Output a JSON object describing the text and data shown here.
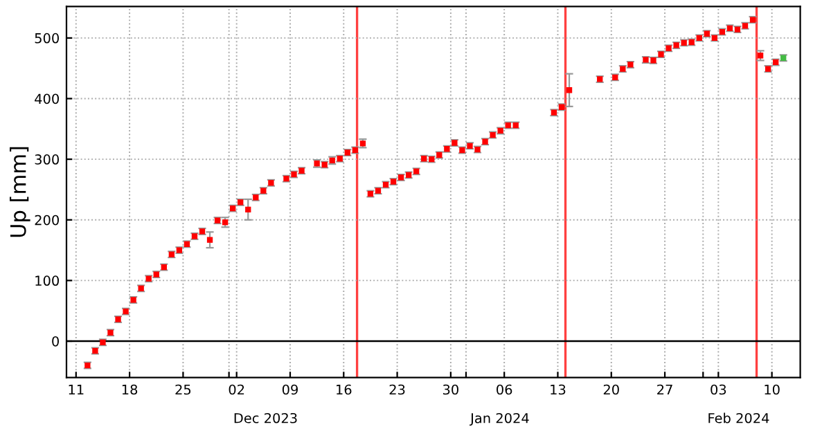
{
  "chart_data": {
    "type": "scatter",
    "ylabel": "Up [mm]",
    "xlim": [
      "2023-11-09T18:00",
      "2024-02-13T17:00"
    ],
    "ylim": [
      -60,
      552
    ],
    "yticks": [
      0,
      100,
      200,
      300,
      400,
      500
    ],
    "xticks": [
      {
        "value": "2023-11-11",
        "label": "11"
      },
      {
        "value": "2023-11-18",
        "label": "18"
      },
      {
        "value": "2023-11-25",
        "label": "25"
      },
      {
        "value": "2023-12-01",
        "label": null
      },
      {
        "value": "2023-12-02",
        "label": "02"
      },
      {
        "value": "2023-12-09",
        "label": "09"
      },
      {
        "value": "2023-12-16",
        "label": "16"
      },
      {
        "value": "2023-12-23",
        "label": "23"
      },
      {
        "value": "2023-12-30",
        "label": "30"
      },
      {
        "value": "2024-01-01",
        "label": null
      },
      {
        "value": "2024-01-06",
        "label": "06"
      },
      {
        "value": "2024-01-13",
        "label": "13"
      },
      {
        "value": "2024-01-20",
        "label": "20"
      },
      {
        "value": "2024-01-27",
        "label": "27"
      },
      {
        "value": "2024-02-01",
        "label": null
      },
      {
        "value": "2024-02-03",
        "label": "03"
      },
      {
        "value": "2024-02-10",
        "label": "10"
      }
    ],
    "annotations": [
      "Dec 2023",
      "Jan 2024",
      "Feb 2024"
    ],
    "grid": true,
    "marker": "square",
    "ref_lines": [
      {
        "axis": "y",
        "value": 0,
        "color": "#000000",
        "line_style": "solid"
      },
      {
        "axis": "x",
        "value": "2023-12-17T18:00",
        "color": "#ff4040",
        "line_style": "solid"
      },
      {
        "axis": "x",
        "value": "2024-01-14T00:00",
        "color": "#ff4040",
        "line_style": "solid"
      },
      {
        "axis": "x",
        "value": "2024-02-08T00:00",
        "color": "#ff4040",
        "line_style": "solid"
      }
    ],
    "series": [
      {
        "x": [
          "2023-11-12T12:00",
          "2023-11-13T12:00",
          "2023-11-14T12:00",
          "2023-11-15T12:00",
          "2023-11-16T12:00",
          "2023-11-17T12:00",
          "2023-11-18T12:00",
          "2023-11-19T12:00",
          "2023-11-20T12:00",
          "2023-11-21T12:00",
          "2023-11-22T12:00",
          "2023-11-23T12:00",
          "2023-11-24T12:00",
          "2023-11-25T12:00",
          "2023-11-26T12:00",
          "2023-11-27T12:00",
          "2023-11-28T12:00",
          "2023-11-29T12:00",
          "2023-11-30T12:00",
          "2023-12-01T12:00",
          "2023-12-02T12:00",
          "2023-12-03T12:00",
          "2023-12-04T12:00",
          "2023-12-05T12:00",
          "2023-12-06T12:00",
          "2023-12-08T12:00",
          "2023-12-09T12:00",
          "2023-12-10T12:00",
          "2023-12-12T12:00",
          "2023-12-13T12:00",
          "2023-12-14T12:00",
          "2023-12-15T12:00",
          "2023-12-16T12:00",
          "2023-12-17T12:00",
          "2023-12-18T12:00",
          "2023-12-19T12:00",
          "2023-12-20T12:00",
          "2023-12-21T12:00",
          "2023-12-22T12:00",
          "2023-12-23T12:00",
          "2023-12-24T12:00",
          "2023-12-25T12:00",
          "2023-12-26T12:00",
          "2023-12-27T12:00",
          "2023-12-28T12:00",
          "2023-12-29T12:00",
          "2023-12-30T12:00",
          "2023-12-31T12:00",
          "2024-01-01T12:00",
          "2024-01-02T12:00",
          "2024-01-03T12:00",
          "2024-01-04T12:00",
          "2024-01-05T12:00",
          "2024-01-06T12:00",
          "2024-01-07T12:00",
          "2024-01-12T12:00",
          "2024-01-13T12:00",
          "2024-01-14T12:00",
          "2024-01-18T12:00",
          "2024-01-20T12:00",
          "2024-01-21T12:00",
          "2024-01-22T12:00",
          "2024-01-24T12:00",
          "2024-01-25T12:00",
          "2024-01-26T12:00",
          "2024-01-27T12:00",
          "2024-01-28T12:00",
          "2024-01-29T12:00",
          "2024-01-30T12:00",
          "2024-01-31T12:00",
          "2024-02-01T12:00",
          "2024-02-02T12:00",
          "2024-02-03T12:00",
          "2024-02-04T12:00",
          "2024-02-05T12:00",
          "2024-02-06T12:00",
          "2024-02-07T12:00",
          "2024-02-08T12:00",
          "2024-02-09T12:00",
          "2024-02-10T12:00",
          "2024-02-11T12:00"
        ],
        "values": [
          -40,
          -16,
          -2,
          14,
          36,
          49,
          68,
          87,
          103,
          110,
          122,
          143,
          150,
          160,
          173,
          181,
          167,
          199,
          196,
          219,
          229,
          217,
          237,
          248,
          261,
          268,
          275,
          281,
          293,
          291,
          298,
          301,
          311,
          315,
          326,
          243,
          248,
          258,
          263,
          270,
          274,
          280,
          301,
          300,
          307,
          317,
          327,
          315,
          322,
          316,
          329,
          340,
          347,
          356,
          356,
          377,
          386,
          414,
          432,
          435,
          449,
          456,
          464,
          463,
          473,
          483,
          488,
          492,
          493,
          500,
          507,
          500,
          510,
          516,
          514,
          520,
          530,
          471,
          449,
          460,
          467
        ],
        "errors": [
          5,
          5,
          5,
          5,
          5,
          5,
          5,
          5,
          5,
          5,
          5,
          5,
          5,
          5,
          5,
          5,
          13,
          5,
          8,
          5,
          5,
          17,
          5,
          5,
          5,
          5,
          5,
          5,
          6,
          5,
          6,
          5,
          5,
          5,
          7,
          5,
          5,
          5,
          5,
          5,
          5,
          5,
          5,
          5,
          5,
          5,
          5,
          5,
          5,
          5,
          5,
          5,
          5,
          5,
          5,
          5,
          5,
          27,
          5,
          5,
          5,
          5,
          5,
          5,
          5,
          5,
          5,
          5,
          5,
          5,
          5,
          5,
          5,
          5,
          5,
          5,
          5,
          8,
          5,
          5,
          5
        ],
        "colors": [
          "#ff0000",
          "#ff0000",
          "#ff0000",
          "#ff0000",
          "#ff0000",
          "#ff0000",
          "#ff0000",
          "#ff0000",
          "#ff0000",
          "#ff0000",
          "#ff0000",
          "#ff0000",
          "#ff0000",
          "#ff0000",
          "#ff0000",
          "#ff0000",
          "#ff0000",
          "#ff0000",
          "#ff0000",
          "#ff0000",
          "#ff0000",
          "#ff0000",
          "#ff0000",
          "#ff0000",
          "#ff0000",
          "#ff0000",
          "#ff0000",
          "#ff0000",
          "#ff0000",
          "#ff0000",
          "#ff0000",
          "#ff0000",
          "#ff0000",
          "#ff0000",
          "#ff0000",
          "#ff0000",
          "#ff0000",
          "#ff0000",
          "#ff0000",
          "#ff0000",
          "#ff0000",
          "#ff0000",
          "#ff0000",
          "#ff0000",
          "#ff0000",
          "#ff0000",
          "#ff0000",
          "#ff0000",
          "#ff0000",
          "#ff0000",
          "#ff0000",
          "#ff0000",
          "#ff0000",
          "#ff0000",
          "#ff0000",
          "#ff0000",
          "#ff0000",
          "#ff0000",
          "#ff0000",
          "#ff0000",
          "#ff0000",
          "#ff0000",
          "#ff0000",
          "#ff0000",
          "#ff0000",
          "#ff0000",
          "#ff0000",
          "#ff0000",
          "#ff0000",
          "#ff0000",
          "#ff0000",
          "#ff0000",
          "#ff0000",
          "#ff0000",
          "#ff0000",
          "#ff0000",
          "#ff0000",
          "#ff0000",
          "#ff0000",
          "#ff0000",
          "#44bb44"
        ]
      }
    ]
  }
}
